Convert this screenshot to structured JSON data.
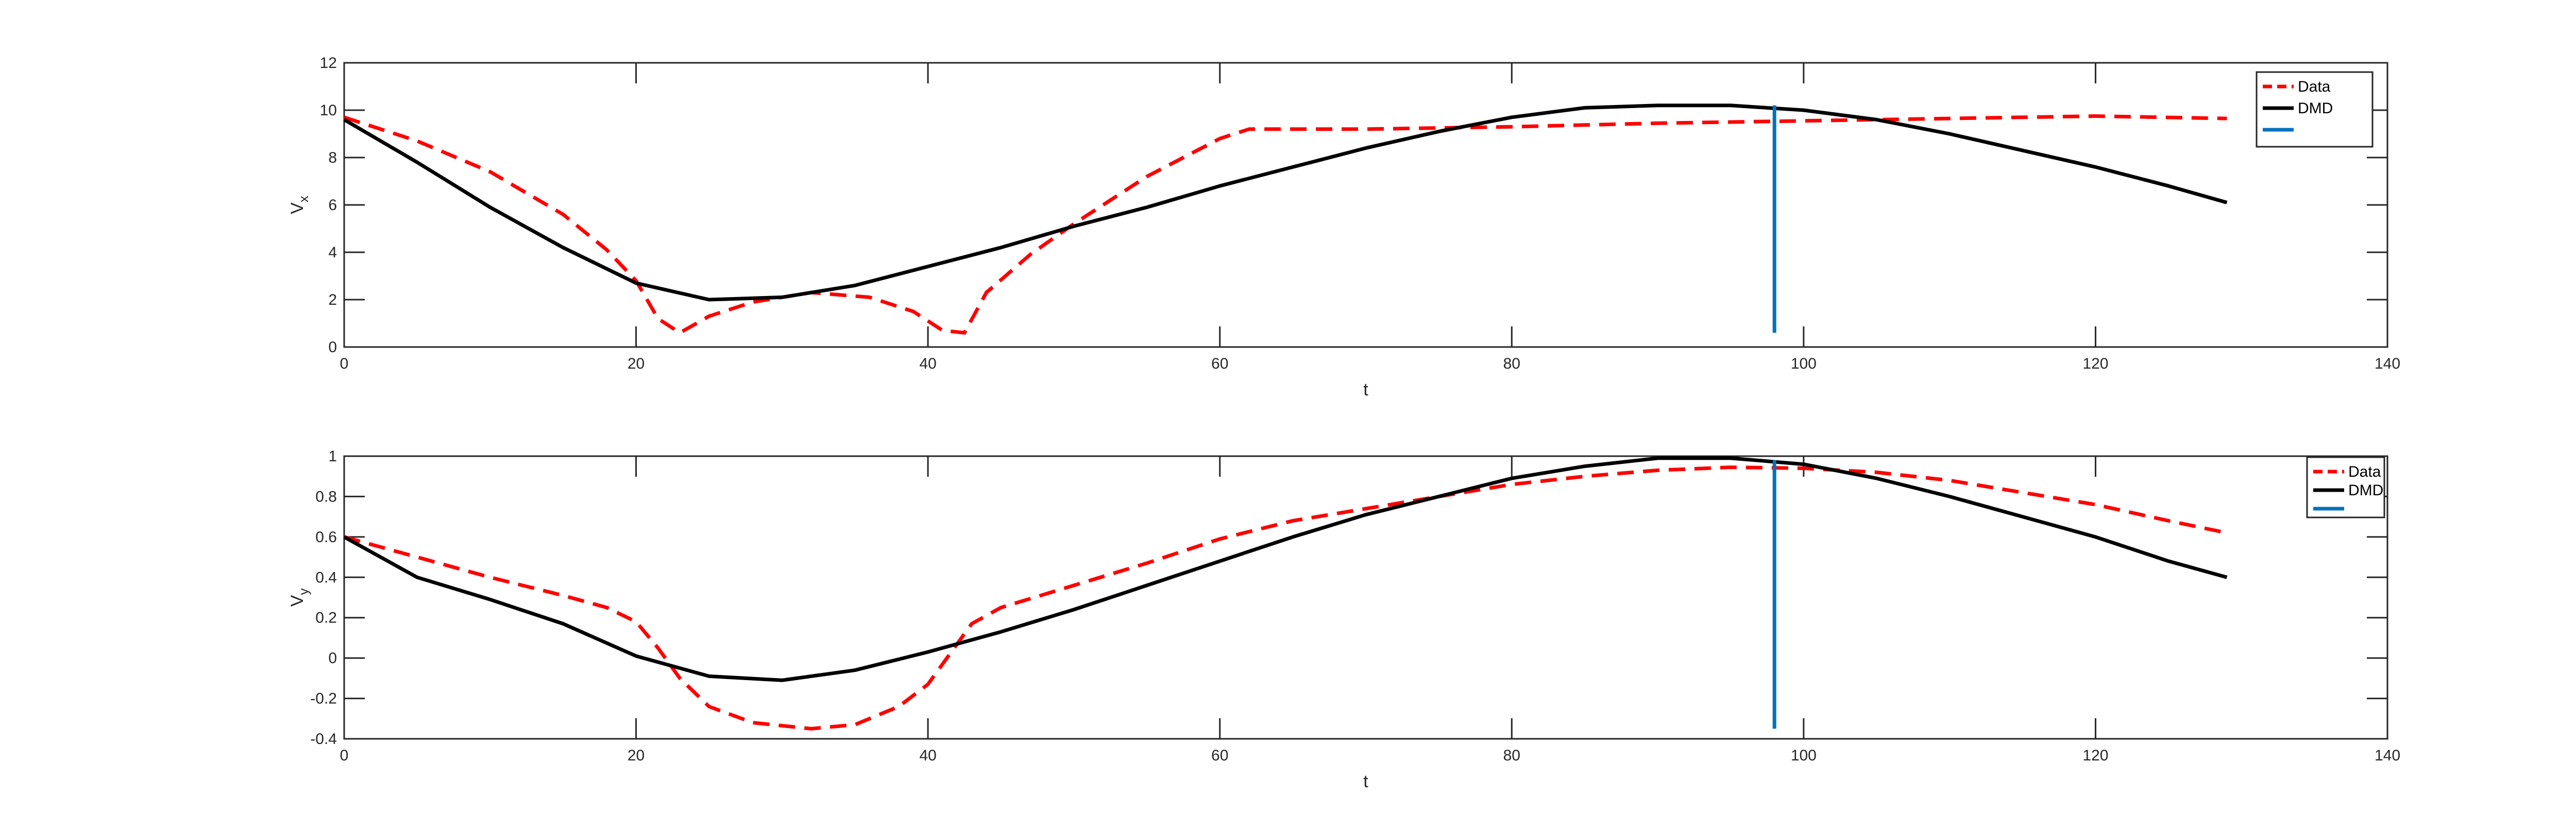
{
  "chart_data": [
    {
      "type": "line",
      "title": "",
      "xlabel": "t",
      "ylabel": "V",
      "ylabel_subscript": "x",
      "xlim": [
        0,
        140
      ],
      "ylim": [
        0,
        12
      ],
      "xticks": [
        0,
        20,
        40,
        60,
        80,
        100,
        120,
        140
      ],
      "yticks": [
        0,
        2,
        4,
        6,
        8,
        10,
        12
      ],
      "grid": false,
      "legend_position": "top-right",
      "vline": {
        "x": 98,
        "y": [
          0.6,
          10.2
        ],
        "color": "#0072BD"
      },
      "series": [
        {
          "name": "Data",
          "style": "dashed",
          "color": "#FF0000",
          "x": [
            0,
            5,
            10,
            15,
            18,
            20,
            21.5,
            23,
            25,
            28,
            32,
            36,
            39,
            41,
            42.5,
            44,
            47,
            50,
            55,
            60,
            62,
            65,
            70,
            80,
            90,
            100,
            110,
            120,
            129
          ],
          "y": [
            9.7,
            8.7,
            7.4,
            5.6,
            4.1,
            2.8,
            1.2,
            0.6,
            1.3,
            1.9,
            2.3,
            2.1,
            1.5,
            0.7,
            0.6,
            2.3,
            3.9,
            5.2,
            7.2,
            8.8,
            9.2,
            9.2,
            9.2,
            9.3,
            9.45,
            9.55,
            9.65,
            9.75,
            9.65
          ]
        },
        {
          "name": "DMD",
          "style": "solid",
          "color": "#000000",
          "x": [
            0,
            5,
            10,
            15,
            20,
            25,
            30,
            35,
            40,
            45,
            50,
            55,
            60,
            65,
            70,
            75,
            80,
            85,
            90,
            95,
            100,
            105,
            110,
            115,
            120,
            125,
            129
          ],
          "y": [
            9.6,
            7.8,
            5.9,
            4.2,
            2.7,
            2.0,
            2.1,
            2.6,
            3.4,
            4.2,
            5.1,
            5.9,
            6.8,
            7.6,
            8.4,
            9.1,
            9.7,
            10.1,
            10.2,
            10.2,
            10.0,
            9.6,
            9.0,
            8.3,
            7.6,
            6.8,
            6.1
          ]
        },
        {
          "name": "",
          "style": "solid",
          "color": "#0072BD",
          "x": [],
          "y": []
        }
      ]
    },
    {
      "type": "line",
      "title": "",
      "xlabel": "t",
      "ylabel": "V",
      "ylabel_subscript": "y",
      "xlim": [
        0,
        140
      ],
      "ylim": [
        -0.4,
        1
      ],
      "xticks": [
        0,
        20,
        40,
        60,
        80,
        100,
        120,
        140
      ],
      "yticks": [
        -0.4,
        -0.2,
        0,
        0.2,
        0.4,
        0.6,
        0.8,
        1
      ],
      "grid": false,
      "legend_position": "top-right",
      "vline": {
        "x": 98,
        "y": [
          -0.35,
          0.98
        ],
        "color": "#0072BD"
      },
      "series": [
        {
          "name": "Data",
          "style": "dashed",
          "color": "#FF0000",
          "x": [
            0,
            5,
            10,
            15,
            18,
            20,
            21.5,
            23,
            25,
            28,
            32,
            35,
            38,
            40,
            41.5,
            43,
            45,
            50,
            55,
            60,
            65,
            70,
            75,
            80,
            85,
            90,
            95,
            100,
            105,
            110,
            115,
            120,
            125,
            129
          ],
          "y": [
            0.6,
            0.5,
            0.4,
            0.31,
            0.25,
            0.18,
            0.05,
            -0.1,
            -0.24,
            -0.32,
            -0.35,
            -0.33,
            -0.24,
            -0.13,
            0.02,
            0.17,
            0.25,
            0.36,
            0.47,
            0.59,
            0.68,
            0.74,
            0.8,
            0.86,
            0.9,
            0.93,
            0.945,
            0.94,
            0.92,
            0.88,
            0.82,
            0.76,
            0.68,
            0.62
          ]
        },
        {
          "name": "DMD",
          "style": "solid",
          "color": "#000000",
          "x": [
            0,
            5,
            10,
            15,
            20,
            25,
            30,
            35,
            40,
            45,
            50,
            55,
            60,
            65,
            70,
            75,
            80,
            85,
            90,
            95,
            100,
            105,
            110,
            115,
            120,
            125,
            129
          ],
          "y": [
            0.6,
            0.4,
            0.29,
            0.17,
            0.01,
            -0.09,
            -0.11,
            -0.06,
            0.03,
            0.13,
            0.24,
            0.36,
            0.48,
            0.6,
            0.71,
            0.8,
            0.89,
            0.95,
            0.99,
            0.99,
            0.96,
            0.89,
            0.8,
            0.7,
            0.6,
            0.48,
            0.4
          ]
        },
        {
          "name": "",
          "style": "solid",
          "color": "#0072BD",
          "x": [],
          "y": []
        }
      ]
    }
  ]
}
